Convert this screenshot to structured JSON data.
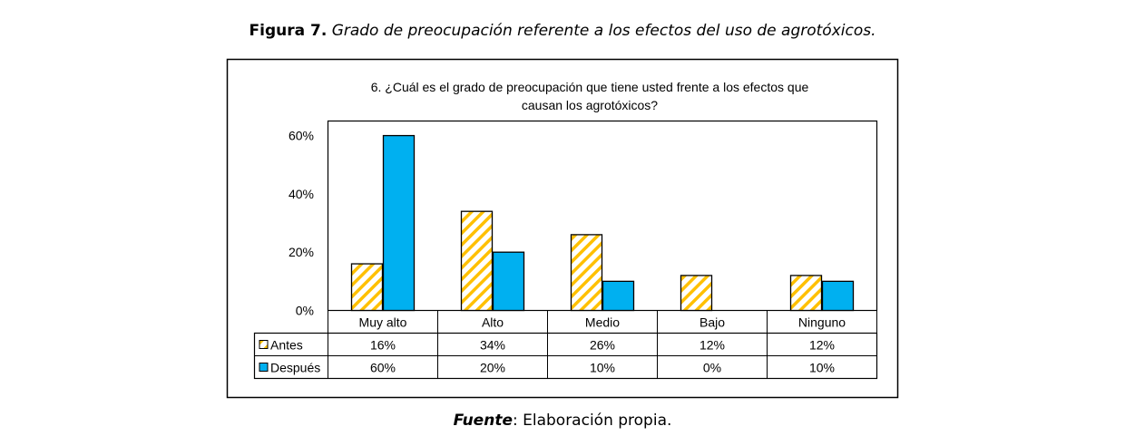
{
  "figure_caption": {
    "label": "Figura 7.",
    "text": "Grado de preocupación referente a los efectos del uso de agrotóxicos."
  },
  "source_note": {
    "label": "Fuente",
    "text": ": Elaboración propia."
  },
  "chart_data": {
    "type": "bar",
    "title_lines": [
      "6. ¿Cuál es el grado de preocupación que tiene usted frente a los efectos que",
      "causan los agrotóxicos?"
    ],
    "categories": [
      "Muy alto",
      "Alto",
      "Medio",
      "Bajo",
      "Ninguno"
    ],
    "series": [
      {
        "name": "Antes",
        "values": [
          16,
          34,
          26,
          12,
          12
        ],
        "labels": [
          "16%",
          "34%",
          "26%",
          "12%",
          "12%"
        ],
        "color": "#FFC000",
        "pattern": "diagonal-stripes"
      },
      {
        "name": "Después",
        "values": [
          60,
          20,
          10,
          0,
          10
        ],
        "labels": [
          "60%",
          "20%",
          "10%",
          "0%",
          "10%"
        ],
        "color": "#00B0F0",
        "pattern": "solid"
      }
    ],
    "yticks": [
      "0%",
      "20%",
      "40%",
      "60%"
    ],
    "ytick_values": [
      0,
      20,
      40,
      60
    ],
    "ylim": [
      0,
      65
    ],
    "grid": false,
    "legend": "data-table"
  }
}
